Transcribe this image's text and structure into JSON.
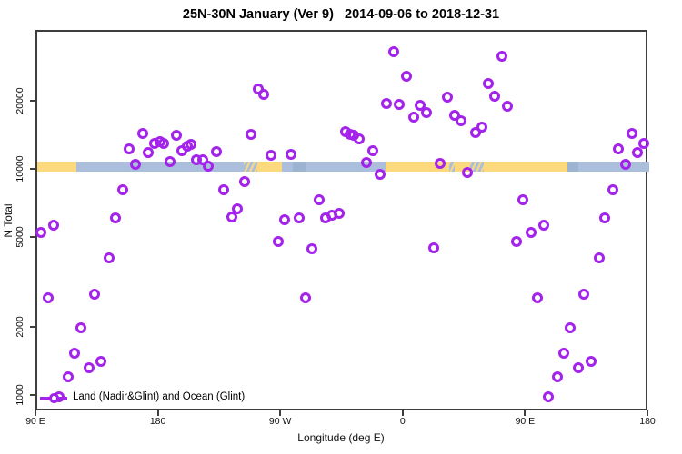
{
  "title": "25N-30N January (Ver 9)   2014-09-06 to 2018-12-31",
  "legend": {
    "label": "Land (Nadir&Glint) and Ocean (Glint)"
  },
  "colors": {
    "point_ring": "#a423eb",
    "land_band": "#fdd97e",
    "ocean_band": "#abbfdc",
    "ocean_band_dark": "#9db3d2",
    "axis": "#3e3e3e"
  },
  "chart_data": {
    "type": "scatter",
    "title": "25N-30N January (Ver 9)   2014-09-06 to 2018-12-31",
    "xlabel": "Longitude (deg E)",
    "ylabel": "N Total",
    "x_axis_note": "longitude in degrees east, continuous 90..540 (wraps 90E>180>90W>0>90E>180); points with lon 90..180 are plotted twice (also at lon+360)",
    "x_range": [
      90,
      540
    ],
    "y_scale": "log10",
    "y_range": [
      855,
      41000
    ],
    "x_ticks": [
      {
        "lon": 90,
        "label": "90 E"
      },
      {
        "lon": 180,
        "label": "180"
      },
      {
        "lon": 270,
        "label": "90 W"
      },
      {
        "lon": 360,
        "label": "0"
      },
      {
        "lon": 450,
        "label": "90 E"
      },
      {
        "lon": 540,
        "label": "180"
      }
    ],
    "y_ticks": [
      {
        "v": 1000,
        "label": "1000"
      },
      {
        "v": 2000,
        "label": "2000"
      },
      {
        "v": 5000,
        "label": "5000"
      },
      {
        "v": 10000,
        "label": "10000"
      },
      {
        "v": 20000,
        "label": "20000"
      }
    ],
    "grid": false,
    "legend_position": "bottom-left inside plot",
    "band": {
      "description": "land/ocean strip drawn across plot at N = 9900..11000",
      "y_range": [
        9900,
        11000
      ],
      "segments": [
        {
          "from": 90,
          "to": 119,
          "type": "land"
        },
        {
          "from": 119,
          "to": 242,
          "type": "ocean"
        },
        {
          "from": 242,
          "to": 252,
          "type": "mixed"
        },
        {
          "from": 252,
          "to": 270,
          "type": "land"
        },
        {
          "from": 270,
          "to": 278,
          "type": "ocean"
        },
        {
          "from": 278,
          "to": 287,
          "type": "ocean_dark"
        },
        {
          "from": 287,
          "to": 346,
          "type": "ocean"
        },
        {
          "from": 346,
          "to": 393,
          "type": "land"
        },
        {
          "from": 393,
          "to": 397,
          "type": "mixed"
        },
        {
          "from": 397,
          "to": 408,
          "type": "land"
        },
        {
          "from": 408,
          "to": 418,
          "type": "mixed"
        },
        {
          "from": 418,
          "to": 480,
          "type": "land"
        },
        {
          "from": 480,
          "to": 488,
          "type": "ocean_dark"
        },
        {
          "from": 488,
          "to": 540,
          "type": "ocean"
        }
      ]
    },
    "points": [
      {
        "lon": 92.9,
        "n": 5330
      },
      {
        "lon": 97.8,
        "n": 2730
      },
      {
        "lon": 102.2,
        "n": 5740
      },
      {
        "lon": 106.0,
        "n": 1000
      },
      {
        "lon": 112.5,
        "n": 1220
      },
      {
        "lon": 117.4,
        "n": 1560
      },
      {
        "lon": 121.9,
        "n": 2020
      },
      {
        "lon": 128.1,
        "n": 1340
      },
      {
        "lon": 131.9,
        "n": 2850
      },
      {
        "lon": 137.0,
        "n": 1430
      },
      {
        "lon": 143.0,
        "n": 4100
      },
      {
        "lon": 147.5,
        "n": 6200
      },
      {
        "lon": 153.1,
        "n": 8260
      },
      {
        "lon": 157.5,
        "n": 12440
      },
      {
        "lon": 162.4,
        "n": 10660
      },
      {
        "lon": 167.6,
        "n": 14630
      },
      {
        "lon": 171.4,
        "n": 12060
      },
      {
        "lon": 176.1,
        "n": 13220
      },
      {
        "lon": 180.3,
        "n": 13480
      },
      {
        "lon": 182.8,
        "n": 13150
      },
      {
        "lon": 187.8,
        "n": 10970
      },
      {
        "lon": 192.5,
        "n": 14300
      },
      {
        "lon": 196.1,
        "n": 12260
      },
      {
        "lon": 200.5,
        "n": 12840
      },
      {
        "lon": 203.0,
        "n": 13080
      },
      {
        "lon": 207.0,
        "n": 11140
      },
      {
        "lon": 211.7,
        "n": 11140
      },
      {
        "lon": 215.7,
        "n": 10440
      },
      {
        "lon": 221.7,
        "n": 12150
      },
      {
        "lon": 227.3,
        "n": 8260
      },
      {
        "lon": 232.9,
        "n": 6250
      },
      {
        "lon": 237.3,
        "n": 6750
      },
      {
        "lon": 242.7,
        "n": 8930
      },
      {
        "lon": 247.1,
        "n": 14490
      },
      {
        "lon": 252.7,
        "n": 22890
      },
      {
        "lon": 256.7,
        "n": 21710
      },
      {
        "lon": 261.6,
        "n": 11690
      },
      {
        "lon": 267.4,
        "n": 4850
      },
      {
        "lon": 271.9,
        "n": 6070
      },
      {
        "lon": 276.7,
        "n": 11840
      },
      {
        "lon": 282.4,
        "n": 6200
      },
      {
        "lon": 287.3,
        "n": 2730
      },
      {
        "lon": 291.9,
        "n": 4510
      },
      {
        "lon": 297.3,
        "n": 7420
      },
      {
        "lon": 301.8,
        "n": 6200
      },
      {
        "lon": 306.9,
        "n": 6350
      },
      {
        "lon": 311.8,
        "n": 6500
      },
      {
        "lon": 316.9,
        "n": 14870
      },
      {
        "lon": 320.2,
        "n": 14480
      },
      {
        "lon": 322.5,
        "n": 14270
      },
      {
        "lon": 326.5,
        "n": 13830
      },
      {
        "lon": 332.1,
        "n": 10850
      },
      {
        "lon": 336.5,
        "n": 12300
      },
      {
        "lon": 342.1,
        "n": 9630
      },
      {
        "lon": 347.0,
        "n": 19800
      },
      {
        "lon": 352.1,
        "n": 33630
      },
      {
        "lon": 356.4,
        "n": 19620
      },
      {
        "lon": 361.5,
        "n": 26060
      },
      {
        "lon": 366.6,
        "n": 17180
      },
      {
        "lon": 371.7,
        "n": 19500
      },
      {
        "lon": 376.4,
        "n": 18050
      },
      {
        "lon": 381.5,
        "n": 4570
      },
      {
        "lon": 385.9,
        "n": 10790
      },
      {
        "lon": 391.6,
        "n": 21180
      },
      {
        "lon": 397.1,
        "n": 17600
      },
      {
        "lon": 401.6,
        "n": 16560
      },
      {
        "lon": 406.5,
        "n": 9830
      },
      {
        "lon": 412.1,
        "n": 14720
      },
      {
        "lon": 416.8,
        "n": 15520
      },
      {
        "lon": 421.6,
        "n": 24200
      },
      {
        "lon": 426.1,
        "n": 21320
      },
      {
        "lon": 431.7,
        "n": 32110
      },
      {
        "lon": 435.7,
        "n": 19320
      },
      {
        "lon": 442.2,
        "n": 4850
      },
      {
        "lon": 446.9,
        "n": 7440
      }
    ]
  }
}
